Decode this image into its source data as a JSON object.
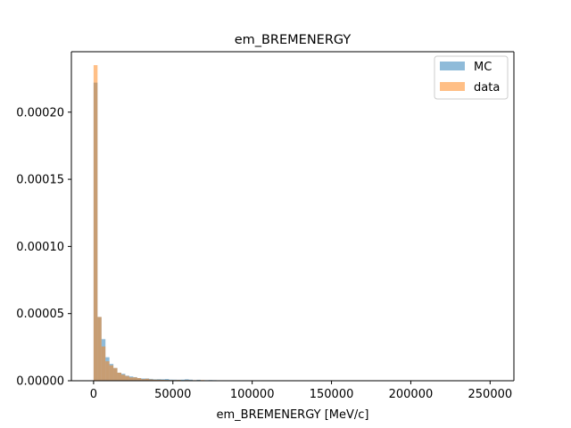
{
  "chart_data": {
    "type": "histogram",
    "title": "em_BREMENERGY",
    "xlabel": "em_BREMENERGY [MeV/c]",
    "ylabel": "",
    "xlim": [
      -14000,
      265000
    ],
    "ylim": [
      0,
      0.000245
    ],
    "xticks": [
      0,
      50000,
      100000,
      150000,
      200000,
      250000
    ],
    "xtick_labels": [
      "0",
      "50000",
      "100000",
      "150000",
      "200000",
      "250000"
    ],
    "yticks": [
      0,
      5e-05,
      0.0001,
      0.00015,
      0.0002
    ],
    "ytick_labels": [
      "0.00000",
      "0.00005",
      "0.00010",
      "0.00015",
      "0.00020"
    ],
    "grid": false,
    "legend_position": "upper right",
    "bin_start": 0,
    "bin_width": 2500,
    "series": [
      {
        "name": "MC",
        "color": "#1f77b4",
        "alpha": 0.5,
        "values": [
          0.000222,
          4.75e-05,
          3.1e-05,
          1.75e-05,
          1.25e-05,
          9.5e-06,
          6e-06,
          5.2e-06,
          3.8e-06,
          3.2e-06,
          2.7e-06,
          2e-06,
          1.7e-06,
          1.7e-06,
          1.4e-06,
          1.1e-06,
          1.2e-06,
          1.1e-06,
          1.3e-06,
          8.5e-07,
          8e-07,
          7.5e-07,
          8e-07,
          1.1e-06,
          8e-07,
          4e-07,
          7e-07,
          3e-07,
          4e-07,
          5e-07,
          4e-07,
          3e-07,
          2.5e-07,
          3e-07,
          2e-07,
          2e-07,
          2.5e-07,
          1.5e-07,
          2e-07,
          1.5e-07,
          1e-07,
          1e-07,
          2e-07,
          1e-07,
          1e-07,
          1e-07,
          5e-08,
          1e-07,
          5e-08,
          5e-08,
          5e-08,
          5e-08,
          1e-07,
          5e-08,
          5e-08,
          3e-08,
          3e-08,
          3e-08,
          3e-08,
          3e-08,
          3e-08,
          3e-08,
          2e-07,
          3e-08,
          3e-08,
          3e-08,
          3e-08,
          3e-08,
          3e-08,
          3e-08,
          3e-08,
          3e-08,
          3e-08,
          3e-08,
          3e-08,
          3e-08,
          3e-08,
          3e-08,
          3e-08,
          3e-08,
          3e-08,
          3e-08,
          3e-08,
          3e-08,
          3e-08,
          3e-08,
          3e-08,
          3e-08,
          3e-08,
          3e-08,
          3e-08,
          3e-08,
          3e-08,
          3e-08,
          3e-08,
          3e-08,
          3e-08,
          3e-08,
          3e-08,
          3e-08
        ]
      },
      {
        "name": "data",
        "color": "#ff7f0e",
        "alpha": 0.5,
        "values": [
          0.000235,
          4.75e-05,
          2.55e-05,
          1.45e-05,
          1.15e-05,
          9.5e-06,
          6e-06,
          4.5e-06,
          3.5e-06,
          2.5e-06,
          2.5e-06,
          2e-06,
          1.2e-06,
          1.5e-06,
          1e-06,
          8e-07,
          8e-07,
          7e-07,
          6e-07,
          5e-07,
          5e-07,
          6e-07,
          3e-07,
          5e-07,
          4e-07,
          4e-07,
          4e-07,
          5e-07,
          2e-07,
          3e-07,
          2e-07,
          2e-07,
          3e-07,
          2e-07,
          1e-07,
          1e-07,
          1e-07,
          1e-07,
          1e-07,
          1e-07,
          1e-07,
          5e-08,
          5e-08,
          5e-08,
          5e-08,
          5e-08,
          5e-08,
          5e-08,
          5e-08,
          5e-08,
          3e-08,
          3e-08,
          3e-08,
          3e-08,
          3e-08,
          3e-08,
          3e-08,
          3e-08,
          3e-08,
          3e-08,
          3e-08,
          3e-08,
          3e-08,
          3e-08,
          3e-08,
          3e-08,
          3e-08,
          3e-08,
          3e-08,
          3e-08,
          3e-08,
          3e-08,
          3e-08,
          3e-08,
          3e-08,
          3e-08,
          3e-08,
          3e-08,
          3e-08,
          3e-08,
          3e-08,
          3e-08,
          3e-08,
          3e-08,
          3e-08,
          3e-08,
          3e-08,
          3e-08,
          3e-08,
          3e-08,
          3e-08,
          3e-08,
          3e-08,
          3e-08,
          3e-08,
          3e-08,
          3e-08,
          3e-08,
          3e-08,
          3e-08
        ]
      }
    ]
  }
}
